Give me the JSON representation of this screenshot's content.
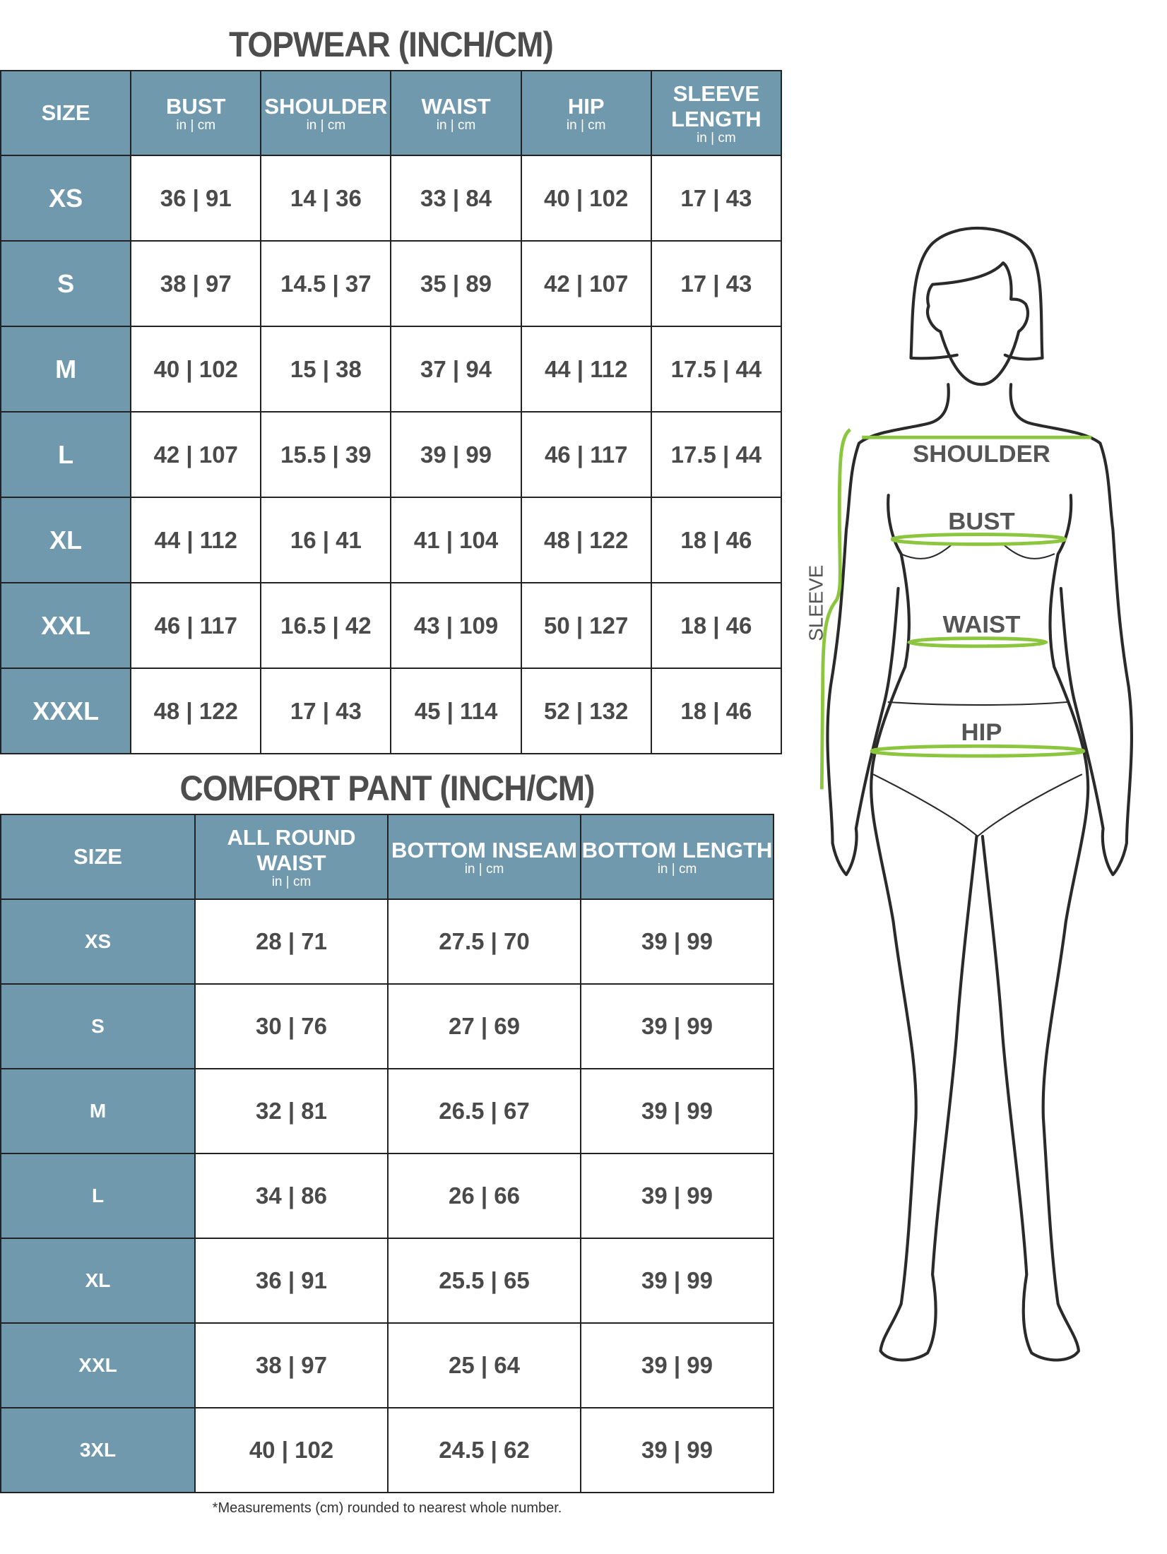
{
  "topwear": {
    "title": "TOPWEAR (INCH/CM)",
    "headers": [
      {
        "label": "SIZE",
        "unit": ""
      },
      {
        "label": "BUST",
        "unit": "in | cm"
      },
      {
        "label": "SHOULDER",
        "unit": "in | cm"
      },
      {
        "label": "WAIST",
        "unit": "in | cm"
      },
      {
        "label": "HIP",
        "unit": "in | cm"
      },
      {
        "label": "SLEEVE LENGTH",
        "unit": "in | cm"
      }
    ],
    "rows": [
      [
        "XS",
        "36 | 91",
        "14 | 36",
        "33 | 84",
        "40 | 102",
        "17 | 43"
      ],
      [
        "S",
        "38 | 97",
        "14.5 | 37",
        "35 | 89",
        "42 | 107",
        "17 | 43"
      ],
      [
        "M",
        "40 | 102",
        "15 | 38",
        "37 | 94",
        "44 | 112",
        "17.5 | 44"
      ],
      [
        "L",
        "42 | 107",
        "15.5 | 39",
        "39 | 99",
        "46 | 117",
        "17.5 | 44"
      ],
      [
        "XL",
        "44 | 112",
        "16 | 41",
        "41 | 104",
        "48 | 122",
        "18 | 46"
      ],
      [
        "XXL",
        "46 | 117",
        "16.5 | 42",
        "43 | 109",
        "50 | 127",
        "18 | 46"
      ],
      [
        "XXXL",
        "48 | 122",
        "17 | 43",
        "45 | 114",
        "52 | 132",
        "18 | 46"
      ]
    ]
  },
  "pant": {
    "title": "COMFORT PANT (INCH/CM)",
    "headers": [
      {
        "label": "SIZE",
        "unit": ""
      },
      {
        "label": "ALL ROUND WAIST",
        "unit": "in | cm"
      },
      {
        "label": "BOTTOM INSEAM",
        "unit": "in | cm"
      },
      {
        "label": "BOTTOM LENGTH",
        "unit": "in | cm"
      }
    ],
    "rows": [
      [
        "XS",
        "28 | 71",
        "27.5 | 70",
        "39 | 99"
      ],
      [
        "S",
        "30 | 76",
        "27 | 69",
        "39 | 99"
      ],
      [
        "M",
        "32 | 81",
        "26.5 | 67",
        "39 | 99"
      ],
      [
        "L",
        "34 | 86",
        "26 | 66",
        "39 | 99"
      ],
      [
        "XL",
        "36 | 91",
        "25.5 | 65",
        "39 | 99"
      ],
      [
        "XXL",
        "38 | 97",
        "25 | 64",
        "39 | 99"
      ],
      [
        "3XL",
        "40 | 102",
        "24.5 | 62",
        "39 | 99"
      ]
    ]
  },
  "figure": {
    "labels": {
      "shoulder": "SHOULDER",
      "bust": "BUST",
      "waist": "WAIST",
      "hip": "HIP",
      "sleeve": "SLEEVE"
    },
    "measure_color": "#8cc63f",
    "header_color": "#7099ae"
  },
  "footnote": "*Measurements (cm) rounded to nearest whole number."
}
